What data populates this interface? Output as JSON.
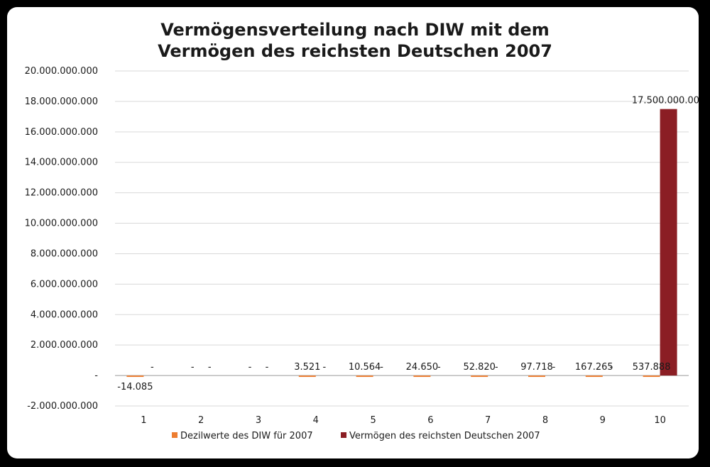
{
  "chart_data": {
    "type": "bar",
    "title_lines": [
      "Vermögensverteilung nach DIW mit dem",
      "Vermögen des reichsten Deutschen 2007"
    ],
    "categories": [
      "1",
      "2",
      "3",
      "4",
      "5",
      "6",
      "7",
      "8",
      "9",
      "10"
    ],
    "series": [
      {
        "name": "Dezilwerte des DIW für 2007",
        "color": "#ED7D31",
        "values": [
          -14085,
          0,
          0,
          3521,
          10564,
          24650,
          52820,
          97718,
          167265,
          537888
        ],
        "labels": [
          "-14.085",
          "-",
          "-",
          "3.521",
          "10.564",
          "24.650",
          "52.820",
          "97.718",
          "167.265",
          "537.888"
        ]
      },
      {
        "name": "Vermögen des reichsten Deutschen 2007",
        "color": "#8B1E24",
        "values": [
          0,
          0,
          0,
          0,
          0,
          0,
          0,
          0,
          0,
          17500000000
        ],
        "labels": [
          "-",
          "-",
          "-",
          "-",
          "-",
          "-",
          "-",
          "-",
          "-",
          "17.500.000.000"
        ]
      }
    ],
    "ylim": [
      -2000000000,
      20000000000
    ],
    "yticks": [
      {
        "value": 20000000000,
        "label": "20.000.000.000"
      },
      {
        "value": 18000000000,
        "label": "18.000.000.000"
      },
      {
        "value": 16000000000,
        "label": "16.000.000.000"
      },
      {
        "value": 14000000000,
        "label": "14.000.000.000"
      },
      {
        "value": 12000000000,
        "label": "12.000.000.000"
      },
      {
        "value": 10000000000,
        "label": "10.000.000.000"
      },
      {
        "value": 8000000000,
        "label": "8.000.000.000"
      },
      {
        "value": 6000000000,
        "label": "6.000.000.000"
      },
      {
        "value": 4000000000,
        "label": "4.000.000.000"
      },
      {
        "value": 2000000000,
        "label": "2.000.000.000"
      },
      {
        "value": 0,
        "label": "-"
      },
      {
        "value": -2000000000,
        "label": "-2.000.000.000"
      }
    ],
    "grid": true,
    "legend_position": "bottom"
  }
}
